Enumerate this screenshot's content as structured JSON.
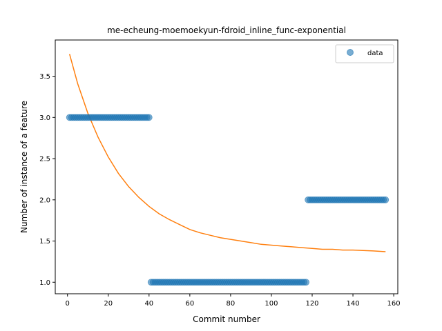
{
  "chart_data": {
    "type": "scatter",
    "title": "me-echeung-moemoekyun-fdroid_inline_func-exponential",
    "xlabel": "Commit number",
    "ylabel": "Number of instance of a feature",
    "xlim": [
      -6,
      162
    ],
    "ylim": [
      0.86,
      3.94
    ],
    "xticks": [
      0,
      20,
      40,
      60,
      80,
      100,
      120,
      140,
      160
    ],
    "yticks": [
      1.0,
      1.5,
      2.0,
      2.5,
      3.0,
      3.5
    ],
    "xtick_labels": [
      "0",
      "20",
      "40",
      "60",
      "80",
      "100",
      "120",
      "140",
      "160"
    ],
    "ytick_labels": [
      "1.0",
      "1.5",
      "2.0",
      "2.5",
      "3.0",
      "3.5"
    ],
    "grid": false,
    "legend": {
      "position": "upper-right",
      "entries": [
        "data"
      ]
    },
    "colors": {
      "data": "#1f77b4",
      "fit": "#ff7f0e"
    },
    "series": [
      {
        "name": "data",
        "kind": "scatter",
        "segments": [
          {
            "x_start": 1,
            "x_end": 40,
            "y": 3.0
          },
          {
            "x_start": 41,
            "x_end": 117,
            "y": 1.0
          },
          {
            "x_start": 118,
            "x_end": 156,
            "y": 2.0
          }
        ]
      },
      {
        "kind": "line",
        "x": [
          1,
          5,
          10,
          15,
          20,
          25,
          30,
          35,
          40,
          45,
          50,
          55,
          60,
          65,
          70,
          75,
          80,
          85,
          90,
          95,
          100,
          105,
          110,
          115,
          120,
          125,
          130,
          135,
          140,
          145,
          150,
          156
        ],
        "y": [
          3.77,
          3.41,
          3.05,
          2.76,
          2.52,
          2.32,
          2.16,
          2.03,
          1.92,
          1.83,
          1.76,
          1.7,
          1.64,
          1.6,
          1.57,
          1.54,
          1.52,
          1.5,
          1.48,
          1.46,
          1.45,
          1.44,
          1.43,
          1.42,
          1.41,
          1.4,
          1.4,
          1.39,
          1.39,
          1.385,
          1.38,
          1.37
        ]
      }
    ]
  }
}
